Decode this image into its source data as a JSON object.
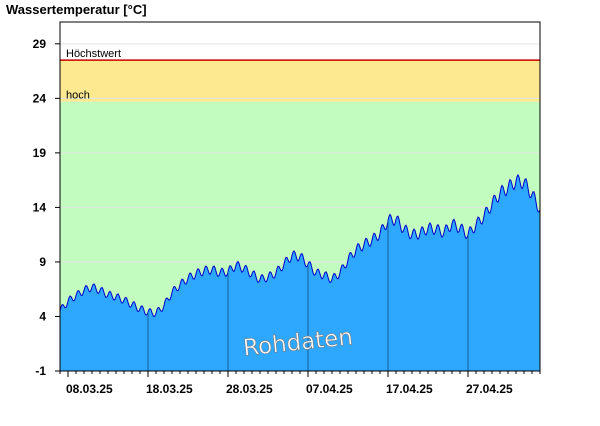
{
  "chart_data": {
    "type": "area",
    "title": "Wassertemperatur [°C]",
    "ylim": [
      -1,
      31
    ],
    "yticks": [
      -1,
      4,
      9,
      14,
      19,
      24,
      29
    ],
    "xlim": [
      "2025-03-07",
      "2025-05-06"
    ],
    "xticks": [
      {
        "date": "2025-03-08",
        "label": "08.03.25"
      },
      {
        "date": "2025-03-18",
        "label": "18.03.25"
      },
      {
        "date": "2025-03-28",
        "label": "28.03.25"
      },
      {
        "date": "2025-04-07",
        "label": "07.04.25"
      },
      {
        "date": "2025-04-17",
        "label": "17.04.25"
      },
      {
        "date": "2025-04-27",
        "label": "27.04.25"
      }
    ],
    "bands": [
      {
        "label": "hoch",
        "from": 23.7,
        "to": 27.5,
        "color": "#fde98f"
      },
      {
        "label": "Höchstwert",
        "value": 27.5,
        "color": "#cc0000"
      }
    ],
    "normal_band_color": "#c3fcbf",
    "series_color": "#2ea8ff",
    "series_line_color": "#0000cc",
    "watermark": "Rohdaten",
    "series": [
      {
        "values": [
          [
            "2025-03-07",
            4.5
          ],
          [
            "2025-03-08",
            5.4
          ],
          [
            "2025-03-09",
            5.9
          ],
          [
            "2025-03-10",
            6.4
          ],
          [
            "2025-03-11",
            6.7
          ],
          [
            "2025-03-12",
            6.4
          ],
          [
            "2025-03-13",
            6.0
          ],
          [
            "2025-03-14",
            5.8
          ],
          [
            "2025-03-15",
            5.5
          ],
          [
            "2025-03-16",
            5.1
          ],
          [
            "2025-03-17",
            4.7
          ],
          [
            "2025-03-18",
            4.4
          ],
          [
            "2025-03-19",
            4.3
          ],
          [
            "2025-03-20",
            5.0
          ],
          [
            "2025-03-21",
            6.2
          ],
          [
            "2025-03-22",
            6.9
          ],
          [
            "2025-03-23",
            7.5
          ],
          [
            "2025-03-24",
            7.9
          ],
          [
            "2025-03-25",
            8.2
          ],
          [
            "2025-03-26",
            8.3
          ],
          [
            "2025-03-27",
            8.0
          ],
          [
            "2025-03-28",
            8.1
          ],
          [
            "2025-03-29",
            8.7
          ],
          [
            "2025-03-30",
            8.4
          ],
          [
            "2025-03-31",
            7.9
          ],
          [
            "2025-04-01",
            7.4
          ],
          [
            "2025-04-02",
            7.6
          ],
          [
            "2025-04-03",
            8.0
          ],
          [
            "2025-04-04",
            8.8
          ],
          [
            "2025-04-05",
            9.6
          ],
          [
            "2025-04-06",
            9.5
          ],
          [
            "2025-04-07",
            8.8
          ],
          [
            "2025-04-08",
            8.0
          ],
          [
            "2025-04-09",
            7.8
          ],
          [
            "2025-04-10",
            7.4
          ],
          [
            "2025-04-11",
            8.0
          ],
          [
            "2025-04-12",
            9.2
          ],
          [
            "2025-04-13",
            10.1
          ],
          [
            "2025-04-14",
            10.6
          ],
          [
            "2025-04-15",
            11.0
          ],
          [
            "2025-04-16",
            11.6
          ],
          [
            "2025-04-17",
            12.8
          ],
          [
            "2025-04-18",
            12.9
          ],
          [
            "2025-04-19",
            12.0
          ],
          [
            "2025-04-20",
            11.5
          ],
          [
            "2025-04-21",
            11.6
          ],
          [
            "2025-04-22",
            12.1
          ],
          [
            "2025-04-23",
            12.0
          ],
          [
            "2025-04-24",
            11.7
          ],
          [
            "2025-04-25",
            12.5
          ],
          [
            "2025-04-26",
            12.1
          ],
          [
            "2025-04-27",
            11.5
          ],
          [
            "2025-04-28",
            12.4
          ],
          [
            "2025-04-29",
            13.2
          ],
          [
            "2025-04-30",
            14.3
          ],
          [
            "2025-05-01",
            15.3
          ],
          [
            "2025-05-02",
            15.8
          ],
          [
            "2025-05-03",
            16.4
          ],
          [
            "2025-05-04",
            16.3
          ],
          [
            "2025-05-05",
            15.2
          ],
          [
            "2025-05-06",
            13.8
          ]
        ]
      }
    ]
  }
}
